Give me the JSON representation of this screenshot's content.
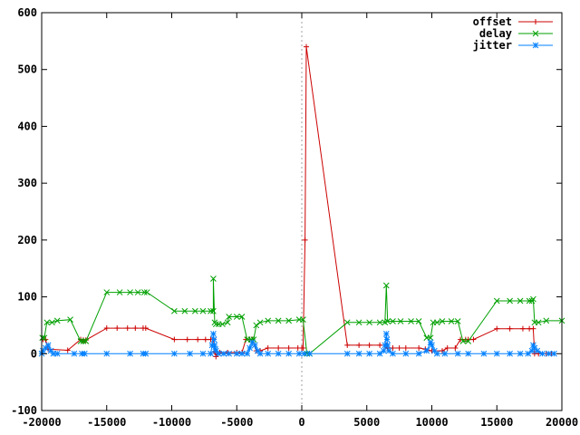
{
  "chart_data": {
    "type": "line",
    "title": "",
    "xlabel": "",
    "ylabel": "",
    "xlim": [
      -20000,
      20000
    ],
    "ylim": [
      -100,
      600
    ],
    "x_ticks": [
      -20000,
      -15000,
      -10000,
      -5000,
      0,
      5000,
      10000,
      15000,
      20000
    ],
    "y_ticks": [
      -100,
      0,
      100,
      200,
      300,
      400,
      500,
      600
    ],
    "x_tick_labels": [
      "-20000",
      "-15000",
      "-10000",
      "-5000",
      "0",
      "5000",
      "10000",
      "15000",
      "20000"
    ],
    "y_tick_labels": [
      "-100",
      "0",
      "100",
      "200",
      "300",
      "400",
      "500",
      "600"
    ],
    "vertical_reference_line": 0,
    "legend_position": "top-right",
    "series": [
      {
        "name": "offset",
        "color": "#cc0000",
        "marker": "plus",
        "points": [
          [
            -19900,
            25
          ],
          [
            -19700,
            25
          ],
          [
            -19500,
            8
          ],
          [
            -18000,
            6
          ],
          [
            -17000,
            25
          ],
          [
            -16800,
            24
          ],
          [
            -16600,
            24
          ],
          [
            -15000,
            45
          ],
          [
            -14200,
            45
          ],
          [
            -13400,
            45
          ],
          [
            -12800,
            45
          ],
          [
            -12200,
            45
          ],
          [
            -12000,
            45
          ],
          [
            -9800,
            25
          ],
          [
            -8800,
            25
          ],
          [
            -8000,
            25
          ],
          [
            -7400,
            25
          ],
          [
            -7000,
            25
          ],
          [
            -6800,
            26
          ],
          [
            -6700,
            3
          ],
          [
            -6600,
            -5
          ],
          [
            -6500,
            0
          ],
          [
            -6300,
            2
          ],
          [
            -5700,
            2
          ],
          [
            -5000,
            2
          ],
          [
            -4600,
            2
          ],
          [
            -4300,
            25
          ],
          [
            -4000,
            25
          ],
          [
            -3800,
            25
          ],
          [
            -3500,
            5
          ],
          [
            -3200,
            5
          ],
          [
            -2600,
            10
          ],
          [
            -1800,
            10
          ],
          [
            -1000,
            10
          ],
          [
            -300,
            10
          ],
          [
            0,
            10
          ],
          [
            100,
            10
          ],
          [
            250,
            200
          ],
          [
            350,
            540
          ],
          [
            3500,
            15
          ],
          [
            4400,
            15
          ],
          [
            5200,
            15
          ],
          [
            6000,
            15
          ],
          [
            6500,
            15
          ],
          [
            6600,
            10
          ],
          [
            7000,
            10
          ],
          [
            7500,
            10
          ],
          [
            8000,
            10
          ],
          [
            9000,
            10
          ],
          [
            9500,
            8
          ],
          [
            10000,
            5
          ],
          [
            10800,
            5
          ],
          [
            11200,
            10
          ],
          [
            11800,
            10
          ],
          [
            12200,
            25
          ],
          [
            12600,
            25
          ],
          [
            12800,
            25
          ],
          [
            13200,
            25
          ],
          [
            15000,
            44
          ],
          [
            16000,
            44
          ],
          [
            17000,
            44
          ],
          [
            17500,
            44
          ],
          [
            17800,
            44
          ],
          [
            17900,
            0
          ],
          [
            18200,
            0
          ],
          [
            18800,
            0
          ],
          [
            19200,
            0
          ]
        ]
      },
      {
        "name": "delay",
        "color": "#00a000",
        "marker": "cross",
        "points": [
          [
            -19950,
            28
          ],
          [
            -19800,
            28
          ],
          [
            -19600,
            55
          ],
          [
            -19200,
            55
          ],
          [
            -18800,
            58
          ],
          [
            -17800,
            60
          ],
          [
            -17000,
            22
          ],
          [
            -16800,
            22
          ],
          [
            -16600,
            22
          ],
          [
            -15000,
            108
          ],
          [
            -14000,
            108
          ],
          [
            -13200,
            108
          ],
          [
            -12600,
            108
          ],
          [
            -12100,
            108
          ],
          [
            -11900,
            108
          ],
          [
            -9800,
            75
          ],
          [
            -9000,
            75
          ],
          [
            -8200,
            75
          ],
          [
            -7600,
            75
          ],
          [
            -7000,
            75
          ],
          [
            -6800,
            75
          ],
          [
            -6800,
            132
          ],
          [
            -6700,
            55
          ],
          [
            -6600,
            52
          ],
          [
            -6400,
            52
          ],
          [
            -6100,
            52
          ],
          [
            -5700,
            55
          ],
          [
            -5600,
            65
          ],
          [
            -5000,
            65
          ],
          [
            -4600,
            65
          ],
          [
            -4200,
            25
          ],
          [
            -3900,
            25
          ],
          [
            -3700,
            25
          ],
          [
            -3500,
            50
          ],
          [
            -3200,
            55
          ],
          [
            -2600,
            58
          ],
          [
            -1800,
            58
          ],
          [
            -1000,
            58
          ],
          [
            -200,
            60
          ],
          [
            100,
            60
          ],
          [
            400,
            0
          ],
          [
            600,
            0
          ],
          [
            3500,
            55
          ],
          [
            4400,
            55
          ],
          [
            5200,
            55
          ],
          [
            6000,
            55
          ],
          [
            6400,
            55
          ],
          [
            6500,
            120
          ],
          [
            6600,
            57
          ],
          [
            7000,
            57
          ],
          [
            7600,
            57
          ],
          [
            8400,
            57
          ],
          [
            9000,
            57
          ],
          [
            9600,
            28
          ],
          [
            9900,
            28
          ],
          [
            10100,
            55
          ],
          [
            10400,
            55
          ],
          [
            10800,
            57
          ],
          [
            11500,
            57
          ],
          [
            12000,
            57
          ],
          [
            12400,
            22
          ],
          [
            12800,
            22
          ],
          [
            15000,
            93
          ],
          [
            16000,
            93
          ],
          [
            16800,
            93
          ],
          [
            17500,
            93
          ],
          [
            17700,
            93
          ],
          [
            17800,
            96
          ],
          [
            17900,
            55
          ],
          [
            18200,
            55
          ],
          [
            18800,
            58
          ],
          [
            20000,
            58
          ]
        ]
      },
      {
        "name": "jitter",
        "color": "#0080ff",
        "marker": "star",
        "points": [
          [
            -20000,
            0
          ],
          [
            -19900,
            5
          ],
          [
            -19700,
            10
          ],
          [
            -19500,
            15
          ],
          [
            -19300,
            5
          ],
          [
            -19100,
            0
          ],
          [
            -18800,
            0
          ],
          [
            -17500,
            0
          ],
          [
            -16900,
            0
          ],
          [
            -16700,
            0
          ],
          [
            -15000,
            0
          ],
          [
            -13200,
            0
          ],
          [
            -12200,
            0
          ],
          [
            -12000,
            0
          ],
          [
            -9800,
            0
          ],
          [
            -8600,
            0
          ],
          [
            -7600,
            0
          ],
          [
            -7000,
            0
          ],
          [
            -6900,
            15
          ],
          [
            -6800,
            35
          ],
          [
            -6750,
            25
          ],
          [
            -6700,
            15
          ],
          [
            -6650,
            8
          ],
          [
            -6600,
            5
          ],
          [
            -6400,
            0
          ],
          [
            -6000,
            0
          ],
          [
            -5600,
            0
          ],
          [
            -5000,
            0
          ],
          [
            -4600,
            0
          ],
          [
            -4200,
            0
          ],
          [
            -4000,
            10
          ],
          [
            -3800,
            20
          ],
          [
            -3600,
            15
          ],
          [
            -3400,
            5
          ],
          [
            -3200,
            0
          ],
          [
            -2600,
            0
          ],
          [
            -1800,
            0
          ],
          [
            -1000,
            0
          ],
          [
            -200,
            0
          ],
          [
            200,
            0
          ],
          [
            600,
            0
          ],
          [
            3500,
            0
          ],
          [
            4400,
            0
          ],
          [
            5200,
            0
          ],
          [
            6000,
            0
          ],
          [
            6300,
            5
          ],
          [
            6400,
            15
          ],
          [
            6500,
            35
          ],
          [
            6550,
            25
          ],
          [
            6600,
            15
          ],
          [
            6700,
            5
          ],
          [
            7000,
            0
          ],
          [
            8000,
            0
          ],
          [
            9000,
            0
          ],
          [
            9600,
            5
          ],
          [
            9900,
            20
          ],
          [
            10000,
            15
          ],
          [
            10200,
            5
          ],
          [
            10400,
            0
          ],
          [
            11000,
            0
          ],
          [
            12000,
            0
          ],
          [
            12800,
            0
          ],
          [
            14000,
            0
          ],
          [
            15000,
            0
          ],
          [
            16000,
            0
          ],
          [
            16800,
            0
          ],
          [
            17400,
            0
          ],
          [
            17700,
            5
          ],
          [
            17800,
            15
          ],
          [
            17900,
            10
          ],
          [
            18100,
            5
          ],
          [
            18500,
            0
          ],
          [
            19000,
            0
          ],
          [
            19400,
            0
          ]
        ]
      }
    ]
  }
}
